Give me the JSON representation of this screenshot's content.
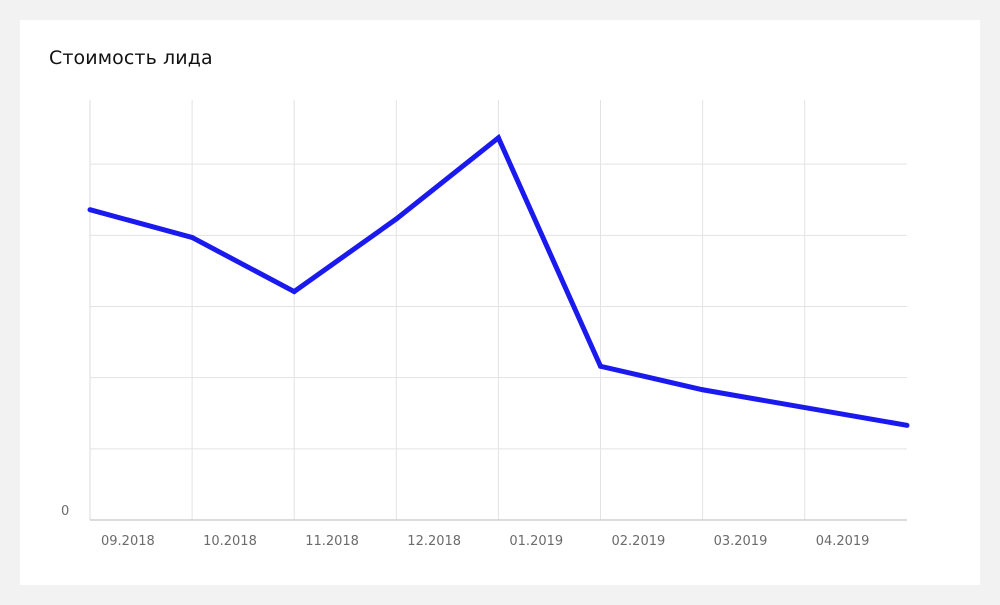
{
  "title": "Стоимость лида",
  "chart_data": {
    "type": "line",
    "title": "Стоимость лида",
    "xlabel": "",
    "ylabel": "",
    "categories": [
      "09.2018",
      "10.2018",
      "11.2018",
      "12.2018",
      "01.2019",
      "02.2019",
      "03.2019",
      "04.2019"
    ],
    "y_tick_labels": [
      "0"
    ],
    "series": [
      {
        "values": [
          4.36,
          3.97,
          3.21,
          4.23,
          5.37,
          2.16,
          1.83,
          1.33
        ]
      }
    ],
    "ylim": [
      0,
      6
    ],
    "grid": true,
    "legend": "none",
    "colors": {
      "line": "#1a1aee",
      "grid": "#e3e3e3",
      "axis": "#c8c8c8",
      "tick_text": "#6b6b6b",
      "background": "#ffffff",
      "page": "#f2f2f2"
    }
  }
}
